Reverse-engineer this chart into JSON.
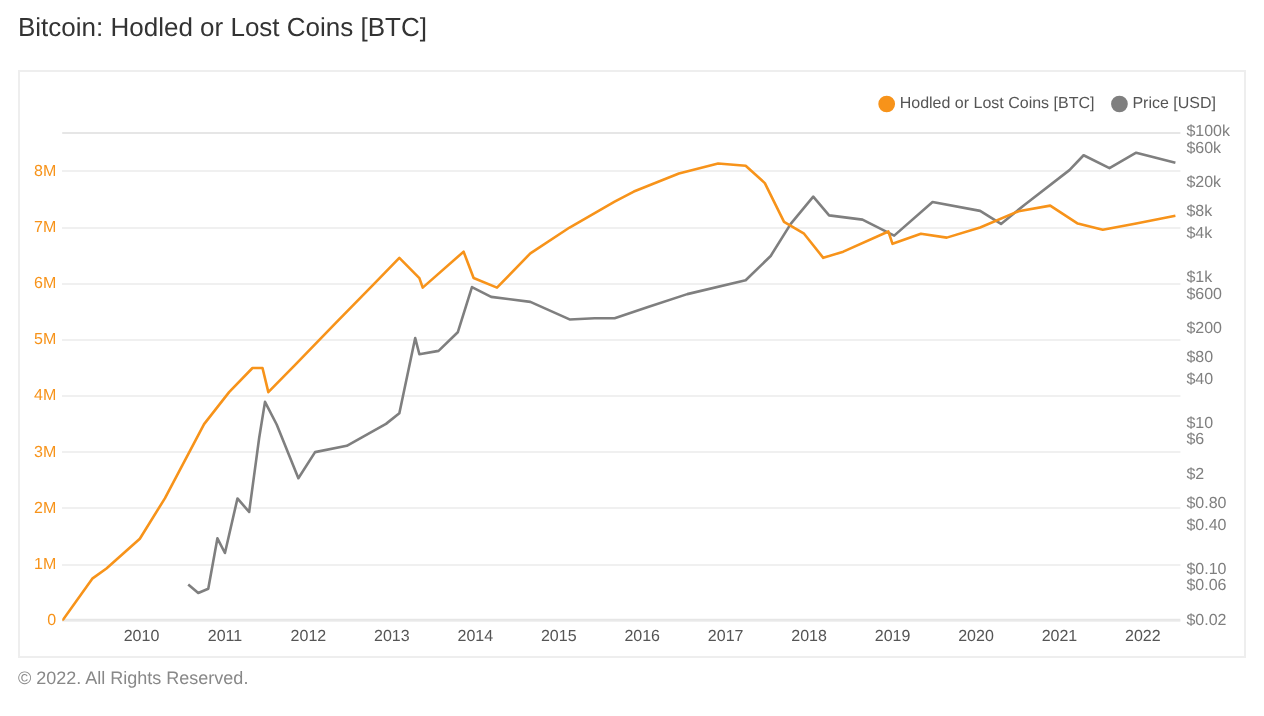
{
  "chart_data": {
    "type": "line",
    "title": "Bitcoin: Hodled or Lost Coins [BTC]",
    "xlim": [
      2009.05,
      2022.45
    ],
    "xticks": [
      2010,
      2011,
      2012,
      2013,
      2014,
      2015,
      2016,
      2017,
      2018,
      2019,
      2020,
      2021,
      2022
    ],
    "ylim": [
      0,
      8700000
    ],
    "yticks": [
      {
        "value": 0,
        "label": "0"
      },
      {
        "value": 1000000,
        "label": "1M"
      },
      {
        "value": 2000000,
        "label": "2M"
      },
      {
        "value": 3000000,
        "label": "3M"
      },
      {
        "value": 4000000,
        "label": "4M"
      },
      {
        "value": 5000000,
        "label": "5M"
      },
      {
        "value": 6000000,
        "label": "6M"
      },
      {
        "value": 7000000,
        "label": "7M"
      },
      {
        "value": 8000000,
        "label": "8M"
      }
    ],
    "y2lim": [
      0.02,
      100000
    ],
    "y2ticks": [
      {
        "value": 0.02,
        "label": "$0.02"
      },
      {
        "value": 0.06,
        "label": "$0.06"
      },
      {
        "value": 0.1,
        "label": "$0.10"
      },
      {
        "value": 0.4,
        "label": "$0.40"
      },
      {
        "value": 0.8,
        "label": "$0.80"
      },
      {
        "value": 2,
        "label": "$2"
      },
      {
        "value": 6,
        "label": "$6"
      },
      {
        "value": 10,
        "label": "$10"
      },
      {
        "value": 40,
        "label": "$40"
      },
      {
        "value": 80,
        "label": "$80"
      },
      {
        "value": 200,
        "label": "$200"
      },
      {
        "value": 600,
        "label": "$600"
      },
      {
        "value": 1000,
        "label": "$1k"
      },
      {
        "value": 4000,
        "label": "$4k"
      },
      {
        "value": 8000,
        "label": "$8k"
      },
      {
        "value": 20000,
        "label": "$20k"
      },
      {
        "value": 60000,
        "label": "$60k"
      },
      {
        "value": 100000,
        "label": "$100k"
      }
    ],
    "log": "y2",
    "grid": "y",
    "legend": "top right",
    "marker": "none",
    "line_style": "solid",
    "annotations": [
      "© 2022. All Rights Reserved."
    ],
    "series": [
      {
        "name": "Hodled or Lost Coins [BTC]",
        "color": "#f7931a",
        "x": [
          2009.05,
          2009.41,
          2009.58,
          2009.98,
          2010.28,
          2010.75,
          2011.05,
          2011.33,
          2011.45,
          2011.52,
          2011.85,
          2012.32,
          2012.79,
          2013.09,
          2013.33,
          2013.37,
          2013.86,
          2013.98,
          2014.26,
          2014.66,
          2015.13,
          2015.67,
          2015.9,
          2016.44,
          2016.91,
          2017.24,
          2017.47,
          2017.7,
          2017.94,
          2018.17,
          2018.41,
          2018.95,
          2019.0,
          2019.34,
          2019.65,
          2020.05,
          2020.51,
          2020.89,
          2021.22,
          2021.52,
          2021.92,
          2022.39
        ],
        "values": [
          0,
          750000,
          930000,
          1460000,
          2180000,
          3500000,
          4070000,
          4500000,
          4500000,
          4070000,
          4570000,
          5290000,
          6000000,
          6460000,
          6100000,
          5930000,
          6570000,
          6100000,
          5930000,
          6540000,
          7000000,
          7460000,
          7640000,
          7960000,
          8140000,
          8100000,
          7790000,
          7100000,
          6890000,
          6460000,
          6570000,
          6930000,
          6710000,
          6890000,
          6820000,
          7000000,
          7290000,
          7390000,
          7070000,
          6960000,
          7070000,
          7210000
        ]
      },
      {
        "name": "Price [USD]",
        "color": "#7f7f7f",
        "axis": "y2",
        "x": [
          2010.56,
          2010.68,
          2010.8,
          2010.91,
          2011.0,
          2011.15,
          2011.29,
          2011.41,
          2011.48,
          2011.62,
          2011.88,
          2012.08,
          2012.46,
          2012.93,
          2013.09,
          2013.28,
          2013.33,
          2013.56,
          2013.79,
          2013.96,
          2014.19,
          2014.66,
          2015.13,
          2015.43,
          2015.67,
          2016.07,
          2016.54,
          2017.24,
          2017.54,
          2017.78,
          2018.05,
          2018.24,
          2018.64,
          2019.02,
          2019.48,
          2020.05,
          2020.3,
          2020.58,
          2021.12,
          2021.29,
          2021.6,
          2021.92,
          2022.39
        ],
        "values": [
          0.063,
          0.048,
          0.055,
          0.27,
          0.17,
          0.95,
          0.62,
          6.4,
          20,
          9.8,
          1.8,
          4.1,
          5,
          10,
          14,
          150,
          90,
          100,
          180,
          750,
          550,
          470,
          270,
          280,
          280,
          400,
          600,
          930,
          2000,
          5500,
          13000,
          7200,
          6300,
          3800,
          11000,
          8300,
          5500,
          10000,
          30000,
          48000,
          32000,
          52000,
          38000
        ]
      }
    ]
  }
}
